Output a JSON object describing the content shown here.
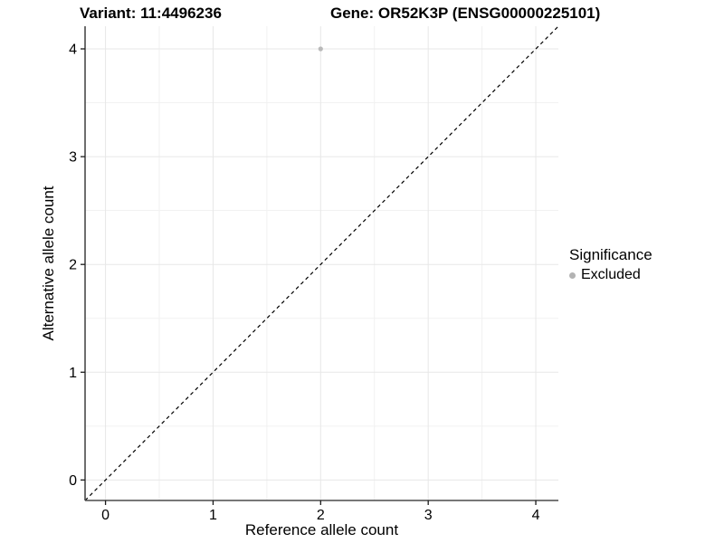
{
  "titles": {
    "variant": "Variant: 11:4496236",
    "gene": "Gene: OR52K3P (ENSG00000225101)"
  },
  "legend": {
    "title": "Significance",
    "items": [
      {
        "label": "Excluded",
        "color": "#b3b3b3"
      }
    ]
  },
  "chart_data": {
    "type": "scatter",
    "title": "Variant: 11:4496236   Gene: OR52K3P (ENSG00000225101)",
    "xlabel": "Reference allele count",
    "ylabel": "Alternative allele count",
    "xlim": [
      -0.19,
      4.21
    ],
    "ylim": [
      -0.19,
      4.21
    ],
    "x_ticks": [
      0,
      1,
      2,
      3,
      4
    ],
    "y_ticks": [
      0,
      1,
      2,
      3,
      4
    ],
    "x_minor": [
      0.5,
      1.5,
      2.5,
      3.5
    ],
    "y_minor": [
      0.5,
      1.5,
      2.5,
      3.5
    ],
    "grid": true,
    "legend_position": "right",
    "series": [
      {
        "name": "Excluded",
        "color": "#b9b9b9",
        "points": [
          {
            "x": 2,
            "y": 4
          }
        ]
      }
    ],
    "reference_line": {
      "type": "identity",
      "style": "dashed",
      "color": "#000000"
    },
    "colors": {
      "grid_major": "#e7e7e7",
      "grid_minor": "#f1f1f1",
      "axis_line": "#4a4a4a",
      "tick": "#1a1a1a",
      "tick_label": "#000000"
    }
  }
}
